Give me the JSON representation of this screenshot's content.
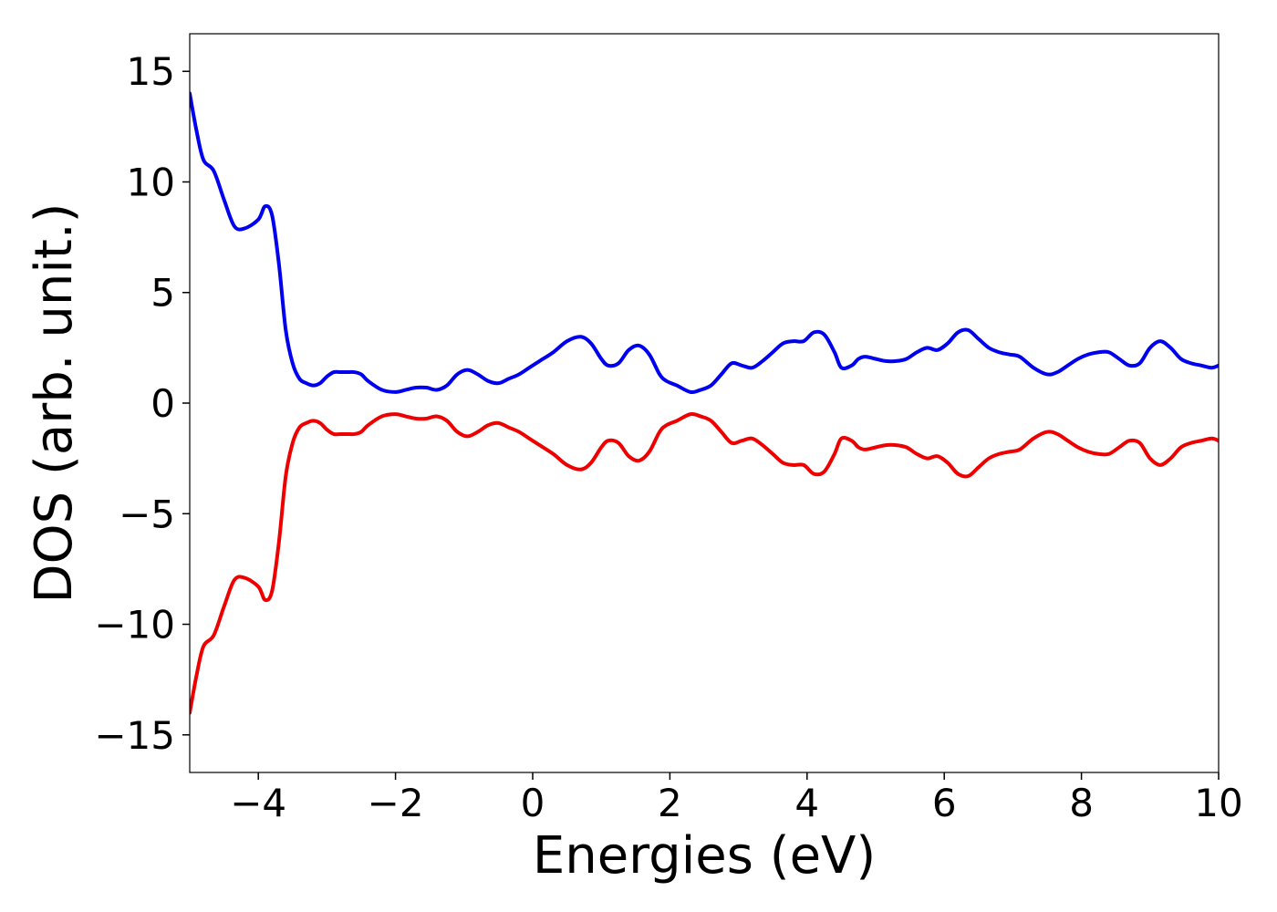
{
  "chart_data": {
    "type": "line",
    "title": "",
    "xlabel": "Energies (eV)",
    "ylabel": "DOS (arb. unit.)",
    "xlim": [
      -5,
      10
    ],
    "ylim": [
      -16.7,
      16.7
    ],
    "grid": false,
    "legend": "none",
    "x_ticks": [
      -4,
      -2,
      0,
      2,
      4,
      6,
      8,
      10
    ],
    "x_tick_labels": [
      "−4",
      "−2",
      "0",
      "2",
      "4",
      "6",
      "8",
      "10"
    ],
    "y_ticks": [
      15,
      10,
      5,
      0,
      -5,
      -10,
      -15
    ],
    "y_tick_labels": [
      "15",
      "10",
      "5",
      "0",
      "−5",
      "−10",
      "−15"
    ],
    "x": [
      -5.0,
      -4.9,
      -4.8,
      -4.65,
      -4.5,
      -4.35,
      -4.2,
      -4.0,
      -3.9,
      -3.8,
      -3.7,
      -3.6,
      -3.5,
      -3.4,
      -3.3,
      -3.2,
      -3.1,
      -3.0,
      -2.9,
      -2.8,
      -2.7,
      -2.6,
      -2.5,
      -2.4,
      -2.2,
      -2.0,
      -1.85,
      -1.7,
      -1.55,
      -1.4,
      -1.25,
      -1.1,
      -0.95,
      -0.8,
      -0.65,
      -0.5,
      -0.35,
      -0.2,
      -0.05,
      0.1,
      0.3,
      0.5,
      0.7,
      0.85,
      1.0,
      1.1,
      1.25,
      1.4,
      1.55,
      1.7,
      1.85,
      1.95,
      2.1,
      2.3,
      2.45,
      2.6,
      2.75,
      2.9,
      3.05,
      3.2,
      3.35,
      3.5,
      3.65,
      3.8,
      3.95,
      4.1,
      4.25,
      4.4,
      4.5,
      4.65,
      4.75,
      4.85,
      5.0,
      5.15,
      5.3,
      5.45,
      5.6,
      5.75,
      5.9,
      6.05,
      6.2,
      6.35,
      6.5,
      6.65,
      6.8,
      6.95,
      7.1,
      7.3,
      7.5,
      7.65,
      7.8,
      7.95,
      8.1,
      8.25,
      8.4,
      8.55,
      8.7,
      8.85,
      9.0,
      9.15,
      9.3,
      9.45,
      9.6,
      9.75,
      9.9,
      10.0
    ],
    "series": [
      {
        "color": "#0000ee",
        "values": [
          14.0,
          12.3,
          11.0,
          10.5,
          9.2,
          8.0,
          7.9,
          8.3,
          8.9,
          8.5,
          6.3,
          3.3,
          1.8,
          1.1,
          0.9,
          0.8,
          0.9,
          1.2,
          1.4,
          1.4,
          1.4,
          1.4,
          1.3,
          1.0,
          0.6,
          0.5,
          0.6,
          0.7,
          0.7,
          0.6,
          0.8,
          1.3,
          1.5,
          1.3,
          1.0,
          0.9,
          1.1,
          1.3,
          1.6,
          1.9,
          2.3,
          2.8,
          3.0,
          2.7,
          2.0,
          1.7,
          1.8,
          2.4,
          2.6,
          2.2,
          1.3,
          1.0,
          0.8,
          0.5,
          0.6,
          0.8,
          1.3,
          1.8,
          1.7,
          1.6,
          1.9,
          2.3,
          2.7,
          2.8,
          2.8,
          3.2,
          3.1,
          2.3,
          1.6,
          1.7,
          2.0,
          2.1,
          2.0,
          1.9,
          1.9,
          2.0,
          2.3,
          2.5,
          2.4,
          2.7,
          3.2,
          3.3,
          2.9,
          2.5,
          2.3,
          2.2,
          2.1,
          1.6,
          1.3,
          1.4,
          1.7,
          2.0,
          2.2,
          2.3,
          2.3,
          2.0,
          1.7,
          1.8,
          2.5,
          2.8,
          2.5,
          2.0,
          1.8,
          1.7,
          1.6,
          1.7
        ]
      },
      {
        "color": "#ee0000",
        "values": [
          -14.0,
          -12.3,
          -11.0,
          -10.5,
          -9.2,
          -8.0,
          -7.9,
          -8.3,
          -8.9,
          -8.5,
          -6.3,
          -3.3,
          -1.8,
          -1.1,
          -0.9,
          -0.8,
          -0.9,
          -1.2,
          -1.4,
          -1.4,
          -1.4,
          -1.4,
          -1.3,
          -1.0,
          -0.6,
          -0.5,
          -0.6,
          -0.7,
          -0.7,
          -0.6,
          -0.8,
          -1.3,
          -1.5,
          -1.3,
          -1.0,
          -0.9,
          -1.1,
          -1.3,
          -1.6,
          -1.9,
          -2.3,
          -2.8,
          -3.0,
          -2.7,
          -2.0,
          -1.7,
          -1.8,
          -2.4,
          -2.6,
          -2.2,
          -1.3,
          -1.0,
          -0.8,
          -0.5,
          -0.6,
          -0.8,
          -1.3,
          -1.8,
          -1.7,
          -1.6,
          -1.9,
          -2.3,
          -2.7,
          -2.8,
          -2.8,
          -3.2,
          -3.1,
          -2.3,
          -1.6,
          -1.7,
          -2.0,
          -2.1,
          -2.0,
          -1.9,
          -1.9,
          -2.0,
          -2.3,
          -2.5,
          -2.4,
          -2.7,
          -3.2,
          -3.3,
          -2.9,
          -2.5,
          -2.3,
          -2.2,
          -2.1,
          -1.6,
          -1.3,
          -1.4,
          -1.7,
          -2.0,
          -2.2,
          -2.3,
          -2.3,
          -2.0,
          -1.7,
          -1.8,
          -2.5,
          -2.8,
          -2.5,
          -2.0,
          -1.8,
          -1.7,
          -1.6,
          -1.7
        ]
      }
    ]
  }
}
